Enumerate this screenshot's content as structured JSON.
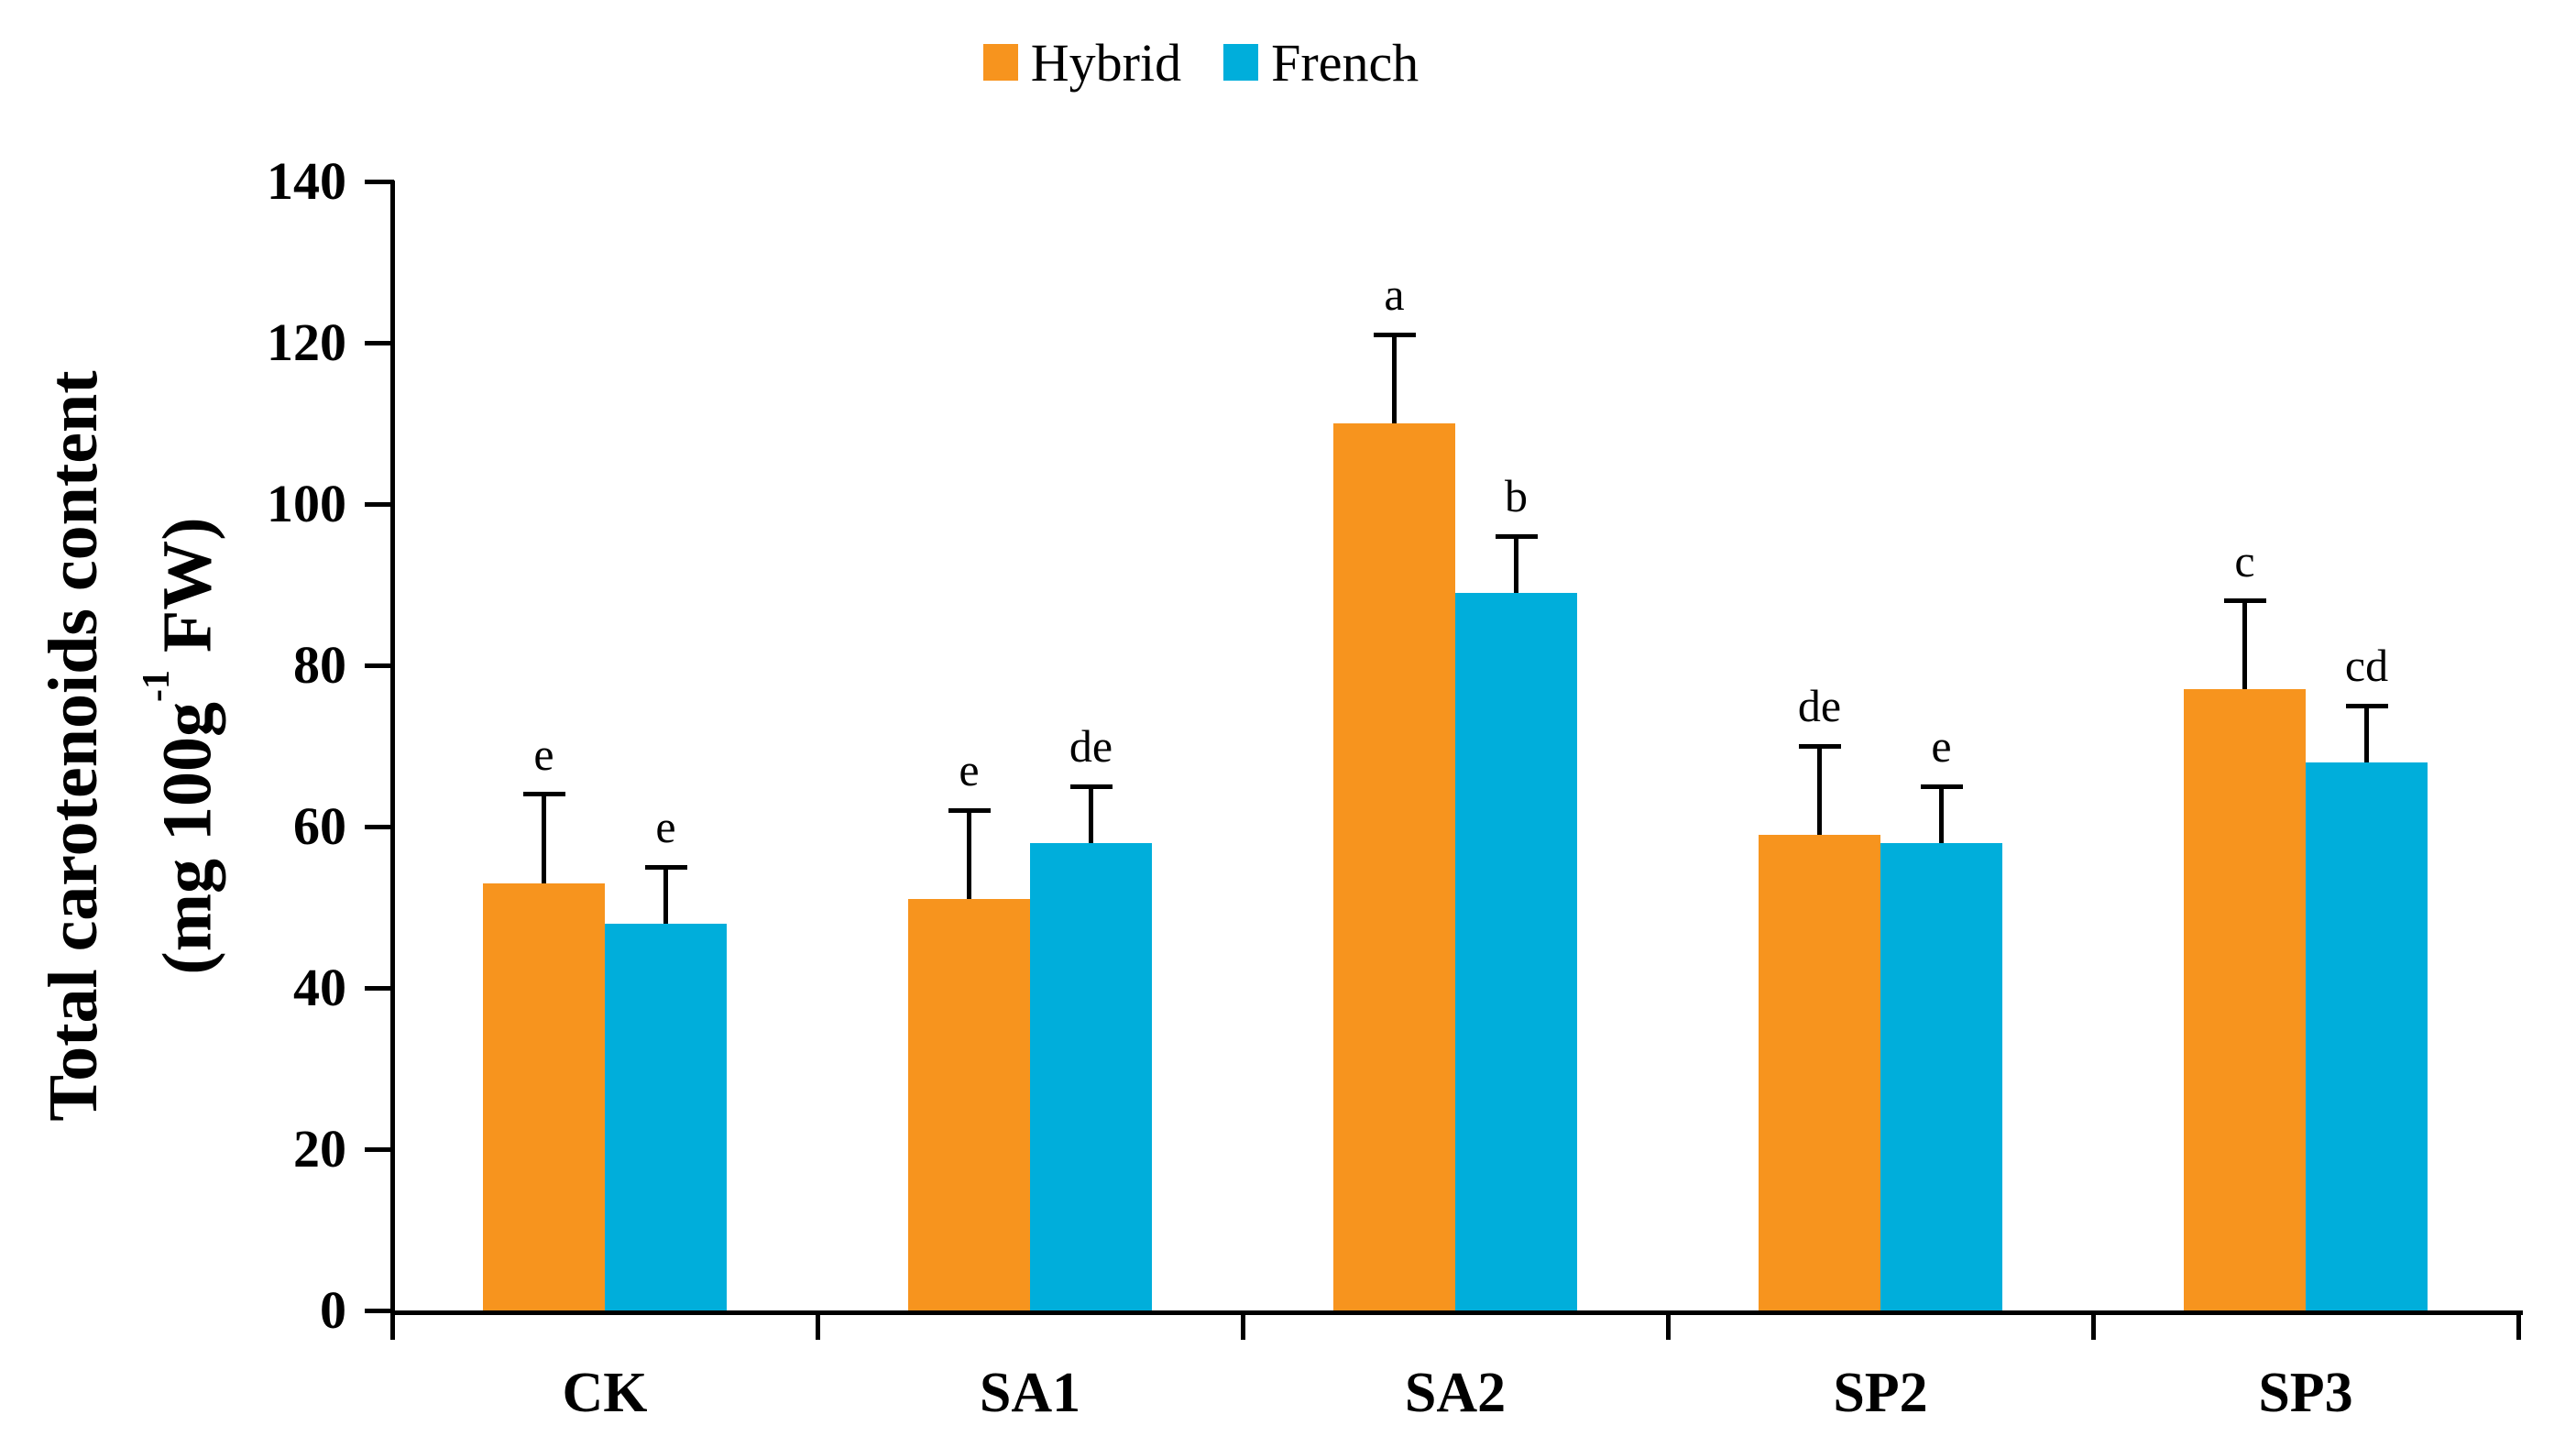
{
  "chart_data": {
    "type": "bar",
    "title": "",
    "categories": [
      "CK",
      "SA1",
      "SA2",
      "SP2",
      "SP3"
    ],
    "series": [
      {
        "name": "Hybrid",
        "color": "#F7941E",
        "values": [
          53,
          51,
          110,
          59,
          77
        ],
        "errors": [
          11,
          11,
          11,
          11,
          11
        ],
        "letters": [
          "e",
          "e",
          "a",
          "de",
          "c"
        ]
      },
      {
        "name": "French",
        "color": "#00AEDB",
        "values": [
          48,
          58,
          89,
          58,
          68
        ],
        "errors": [
          7,
          7,
          7,
          7,
          7
        ],
        "letters": [
          "e",
          "de",
          "b",
          "e",
          "cd"
        ]
      }
    ],
    "ylabel_line1": "Total carotenoids content",
    "ylabel_line2_prefix": "(mg 100g",
    "ylabel_sup": "-1",
    "ylabel_line2_suffix": " FW)",
    "xlabel": "",
    "ylim": [
      0,
      140
    ],
    "ytick_step": 20,
    "yticks": [
      0,
      20,
      40,
      60,
      80,
      100,
      120,
      140
    ],
    "grid": "off",
    "legend_position": "top-center",
    "axis_color": "#000000",
    "error_bar_direction": "plus-only"
  }
}
